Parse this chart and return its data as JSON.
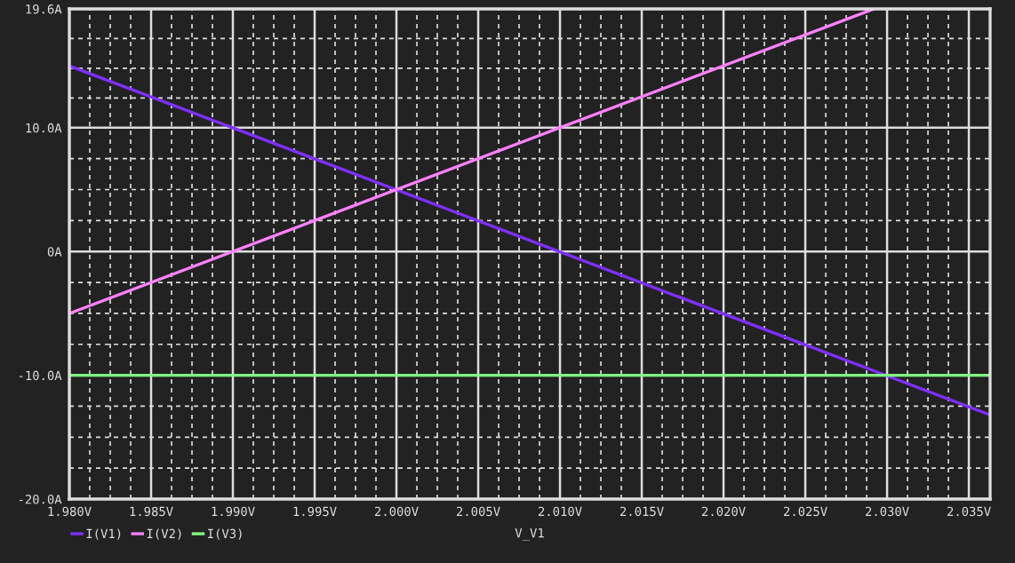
{
  "chart_data": {
    "type": "line",
    "xlabel": "V_V1",
    "xlim": [
      1.98,
      2.0363
    ],
    "ylim": [
      -20,
      19.6
    ],
    "xticks": [
      {
        "value": 1.98,
        "label": "1.980V"
      },
      {
        "value": 1.985,
        "label": "1.985V"
      },
      {
        "value": 1.99,
        "label": "1.990V"
      },
      {
        "value": 1.995,
        "label": "1.995V"
      },
      {
        "value": 2.0,
        "label": "2.000V"
      },
      {
        "value": 2.005,
        "label": "2.005V"
      },
      {
        "value": 2.01,
        "label": "2.010V"
      },
      {
        "value": 2.015,
        "label": "2.015V"
      },
      {
        "value": 2.02,
        "label": "2.020V"
      },
      {
        "value": 2.025,
        "label": "2.025V"
      },
      {
        "value": 2.03,
        "label": "2.030V"
      },
      {
        "value": 2.035,
        "label": "2.035V"
      }
    ],
    "yticks": [
      {
        "value": -20,
        "label": "-20.0A"
      },
      {
        "value": -10,
        "label": "-10.0A"
      },
      {
        "value": 0,
        "label": "0A"
      },
      {
        "value": 10,
        "label": "10.0A"
      },
      {
        "value": 19.6,
        "label": "19.6A"
      }
    ],
    "grid": true,
    "legend": "bottom left",
    "line_style": "solid",
    "series": [
      {
        "name": "I(V1)",
        "color": "#7f2fff",
        "x": [
          1.98,
          2.0363
        ],
        "values": [
          15,
          -13.2
        ]
      },
      {
        "name": "I(V2)",
        "color": "#ff80ff",
        "x": [
          1.98,
          2.0292
        ],
        "values": [
          -5,
          19.6
        ]
      },
      {
        "name": "I(V3)",
        "color": "#80ff80",
        "x": [
          1.98,
          2.0363
        ],
        "values": [
          -10,
          -10
        ]
      }
    ]
  }
}
